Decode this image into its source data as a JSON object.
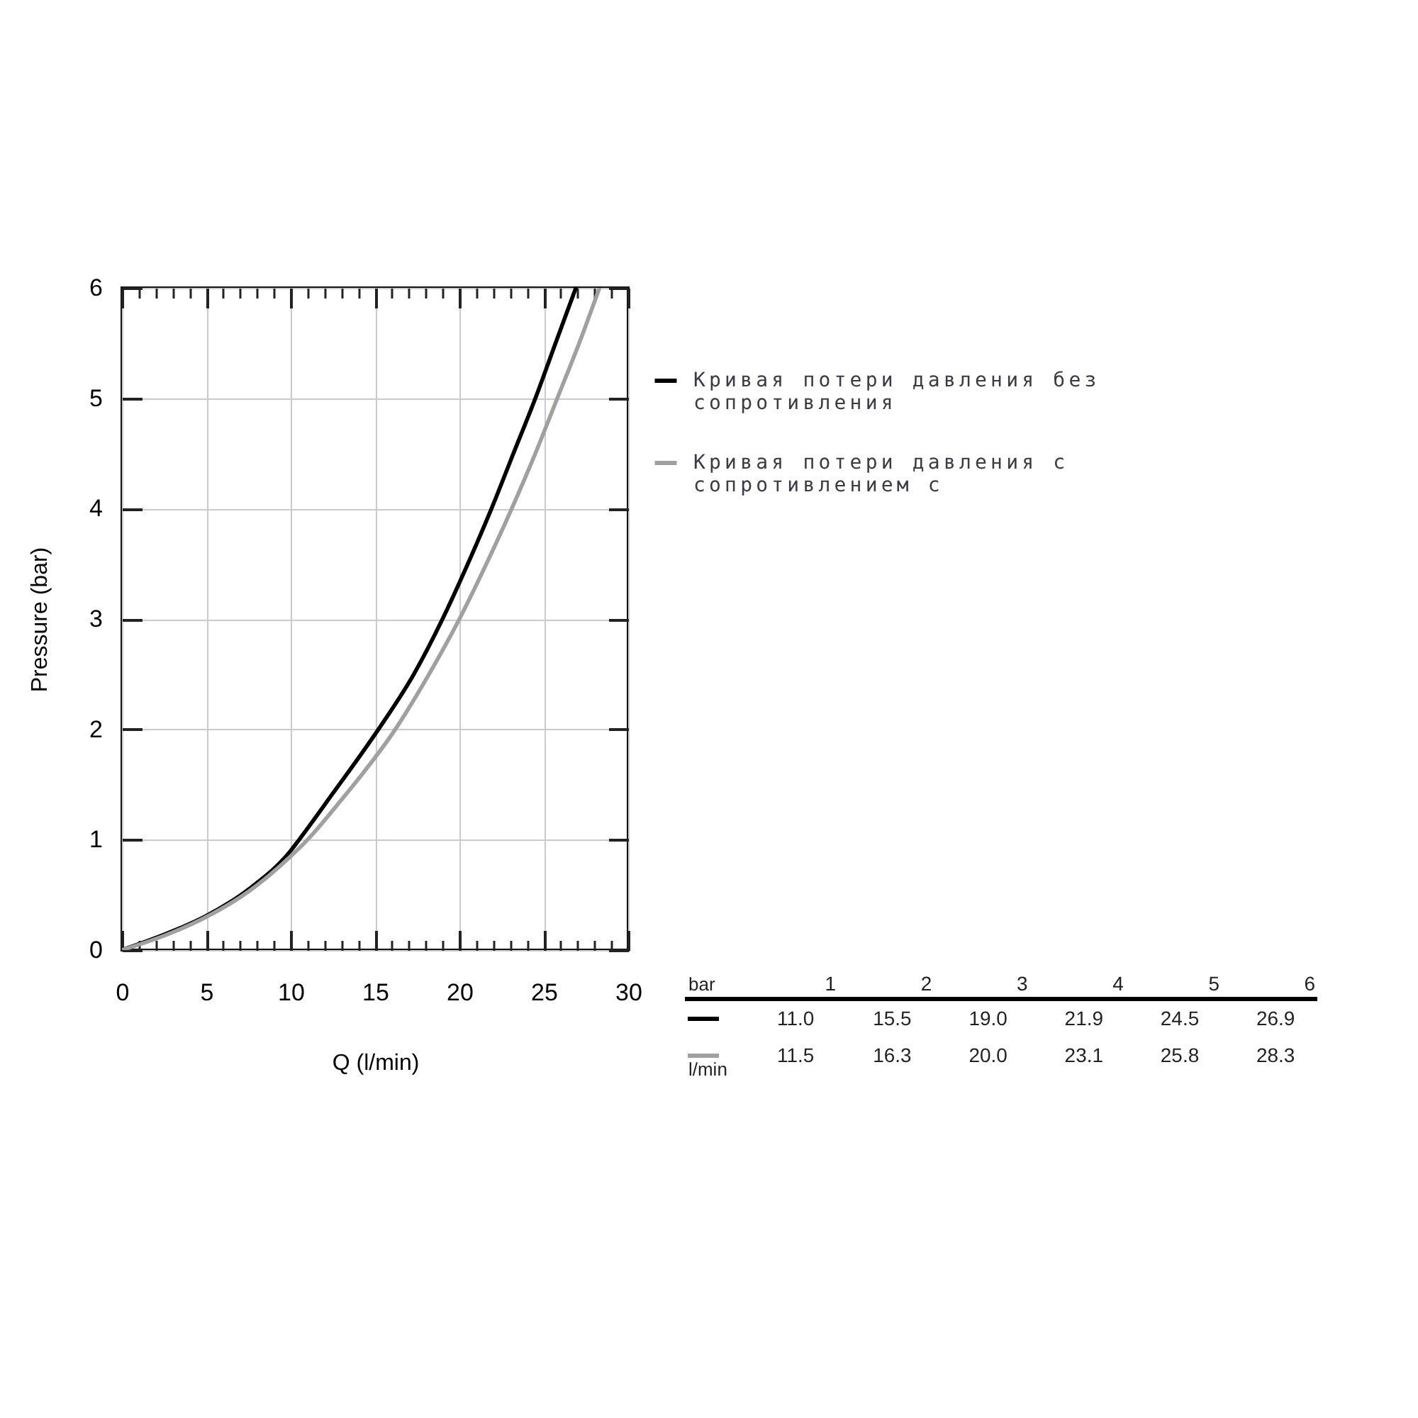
{
  "chart_data": [
    {
      "type": "line",
      "xlabel": "Q (l/min)",
      "ylabel": "Pressure (bar)",
      "xlim": [
        0,
        30
      ],
      "ylim": [
        0,
        6
      ],
      "xticks": [
        0,
        {
          "value": 1,
          "label": null
        },
        {
          "value": 2,
          "label": null
        },
        {
          "value": 3,
          "label": null
        },
        {
          "value": 4,
          "label": null
        },
        5,
        {
          "value": 6,
          "label": null
        },
        {
          "value": 7,
          "label": null
        },
        {
          "value": 8,
          "label": null
        },
        {
          "value": 9,
          "label": null
        },
        10,
        {
          "value": 11,
          "label": null
        },
        {
          "value": 12,
          "label": null
        },
        {
          "value": 13,
          "label": null
        },
        {
          "value": 14,
          "label": null
        },
        15,
        {
          "value": 16,
          "label": null
        },
        {
          "value": 17,
          "label": null
        },
        {
          "value": 18,
          "label": null
        },
        {
          "value": 19,
          "label": null
        },
        20,
        {
          "value": 21,
          "label": null
        },
        {
          "value": 22,
          "label": null
        },
        {
          "value": 23,
          "label": null
        },
        {
          "value": 24,
          "label": null
        },
        25,
        {
          "value": 26,
          "label": null
        },
        {
          "value": 27,
          "label": null
        },
        {
          "value": 28,
          "label": null
        },
        {
          "value": 29,
          "label": null
        },
        30
      ],
      "yticks": [
        0,
        1,
        2,
        3,
        4,
        5,
        6
      ],
      "grid": true,
      "legend": "right",
      "series": [
        {
          "name": "Кривая потери давления без сопротивления",
          "color": "#000000",
          "x": [
            0,
            2.5,
            5,
            7.5,
            10,
            10.5,
            12.5,
            15.2,
            17.3,
            19,
            20.5,
            21.9,
            23.2,
            24.5,
            25.7,
            26.9
          ],
          "values": [
            0,
            0.14,
            0.31,
            0.55,
            0.9,
            1,
            1.42,
            2,
            2.5,
            3,
            3.5,
            4,
            4.5,
            5,
            5.5,
            6
          ]
        },
        {
          "name": "Кривая потери давления с сопротивлением с",
          "color": "#a0a0a0",
          "x": [
            0,
            2.5,
            5,
            7.5,
            10,
            11,
            13,
            16.2,
            18.2,
            20,
            21.6,
            23.1,
            24.5,
            25.8,
            27.1,
            28.3
          ],
          "values": [
            0,
            0.13,
            0.3,
            0.53,
            0.85,
            1,
            1.36,
            2,
            2.5,
            3,
            3.5,
            4,
            4.5,
            5,
            5.5,
            6
          ]
        }
      ]
    },
    {
      "type": "heatmap",
      "xlabel": "bar",
      "ylabel": "l/min",
      "categories": [
        "1",
        "2",
        "3",
        "4",
        "5",
        "6"
      ],
      "y_categories": [
        null,
        null
      ],
      "cells": [
        [
          11.0,
          15.5,
          19.0,
          21.9,
          24.5,
          26.9
        ],
        [
          11.5,
          16.3,
          20.0,
          23.1,
          25.8,
          28.3
        ]
      ],
      "cell_labels": [
        [
          "11.0",
          "15.5",
          "19.0",
          "21.9",
          "24.5",
          "26.9"
        ],
        [
          "11.5",
          "16.3",
          "20.0",
          "23.1",
          "25.8",
          "28.3"
        ]
      ]
    }
  ]
}
